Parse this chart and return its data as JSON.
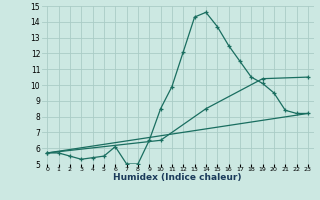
{
  "xlabel": "Humidex (Indice chaleur)",
  "xlim": [
    -0.5,
    23.5
  ],
  "ylim": [
    5,
    15
  ],
  "yticks": [
    5,
    6,
    7,
    8,
    9,
    10,
    11,
    12,
    13,
    14,
    15
  ],
  "xticks": [
    0,
    1,
    2,
    3,
    4,
    5,
    6,
    7,
    8,
    9,
    10,
    11,
    12,
    13,
    14,
    15,
    16,
    17,
    18,
    19,
    20,
    21,
    22,
    23
  ],
  "xtick_labels": [
    "0",
    "1",
    "2",
    "3",
    "4",
    "5",
    "6",
    "7",
    "8",
    "9",
    "10",
    "11",
    "12",
    "13",
    "14",
    "15",
    "16",
    "17",
    "18",
    "19",
    "20",
    "21",
    "22",
    "23"
  ],
  "bg_color": "#cce8e2",
  "grid_color": "#aaccc6",
  "line_color": "#1a6e60",
  "line1_x": [
    0,
    1,
    2,
    3,
    4,
    5,
    6,
    7,
    8,
    9,
    10,
    11,
    12,
    13,
    14,
    15,
    16,
    17,
    18,
    19,
    20,
    21,
    22,
    23
  ],
  "line1_y": [
    5.7,
    5.7,
    5.5,
    5.3,
    5.4,
    5.5,
    6.1,
    5.0,
    5.0,
    6.5,
    8.5,
    9.9,
    12.1,
    14.3,
    14.6,
    13.7,
    12.5,
    11.5,
    10.5,
    10.1,
    9.5,
    8.4,
    8.2,
    8.2
  ],
  "line2_x": [
    0,
    23
  ],
  "line2_y": [
    5.7,
    8.2
  ],
  "line3_x": [
    0,
    10,
    14,
    19,
    23
  ],
  "line3_y": [
    5.7,
    6.5,
    8.5,
    10.4,
    10.5
  ],
  "xlabel_fontsize": 6.5,
  "xlabel_color": "#1a3a5a",
  "tick_fontsize": 4.5,
  "ytick_fontsize": 5.5
}
